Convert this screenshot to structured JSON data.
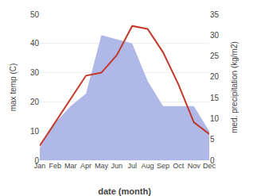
{
  "chart_data": {
    "type": "line",
    "categories": [
      "Jan",
      "Feb",
      "Mar",
      "Apr",
      "May",
      "Jun",
      "Jul",
      "Aug",
      "Sep",
      "Oct",
      "Nov",
      "Dec"
    ],
    "xlabel": "date (month)",
    "ylabel": "max temp (C)",
    "y2label": "med. precipitation (kg/m2)",
    "series": [
      {
        "type": "area",
        "axis": "y2",
        "color": "#b0b8e8",
        "values": [
          3,
          9,
          13,
          16,
          30,
          29,
          28,
          19,
          13,
          13,
          13,
          7
        ]
      },
      {
        "type": "line",
        "color": "#c0392b",
        "values": [
          5,
          13,
          21,
          29,
          30,
          36,
          46,
          45,
          37,
          26,
          13,
          9
        ]
      }
    ],
    "ylim": [
      0,
      50
    ],
    "yticks": [
      0,
      10,
      20,
      30,
      40,
      50
    ],
    "y2lim": [
      0,
      35
    ],
    "y2ticks": [
      0,
      5,
      10,
      15,
      20,
      25,
      30,
      35
    ],
    "grid": true
  }
}
